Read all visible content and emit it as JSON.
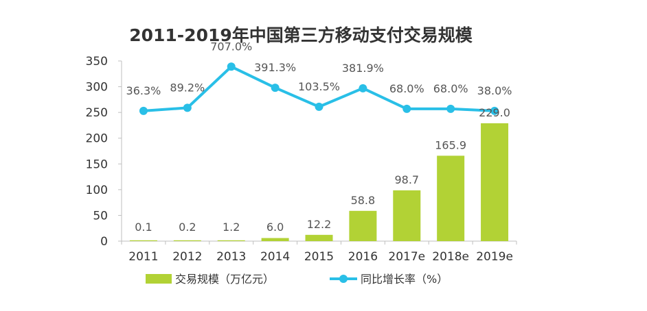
{
  "chart_data": {
    "type": "bar",
    "title": "2011-2019年中国第三方移动支付交易规模",
    "categories": [
      "2011",
      "2012",
      "2013",
      "2014",
      "2015",
      "2016",
      "2017e",
      "2018e",
      "2019e"
    ],
    "ylim": [
      0,
      350
    ],
    "yticks": [
      "0",
      "50",
      "100",
      "150",
      "200",
      "250",
      "300",
      "350"
    ],
    "grid": false,
    "series": [
      {
        "name": "交易规模（万亿元）",
        "type": "bar",
        "values": [
          0.1,
          0.2,
          1.2,
          6.0,
          12.2,
          58.8,
          98.7,
          165.9,
          229.0
        ],
        "labels": [
          "0.1",
          "0.2",
          "1.2",
          "6.0",
          "12.2",
          "58.8",
          "98.7",
          "165.9",
          "229.0"
        ]
      },
      {
        "name": "同比增长率（%）",
        "type": "line",
        "plotted_on_axis": [
          253,
          259,
          339,
          298,
          261,
          297,
          257,
          257,
          253
        ],
        "labels": [
          "36.3%",
          "89.2%",
          "707.0%",
          "391.3%",
          "103.5%",
          "381.9%",
          "68.0%",
          "68.0%",
          "38.0%"
        ]
      }
    ],
    "colors": {
      "bar": "#b2d235",
      "line": "#29bfe7",
      "axis": "#bfbfbf",
      "text": "#333333"
    },
    "legend_position": "bottom"
  }
}
